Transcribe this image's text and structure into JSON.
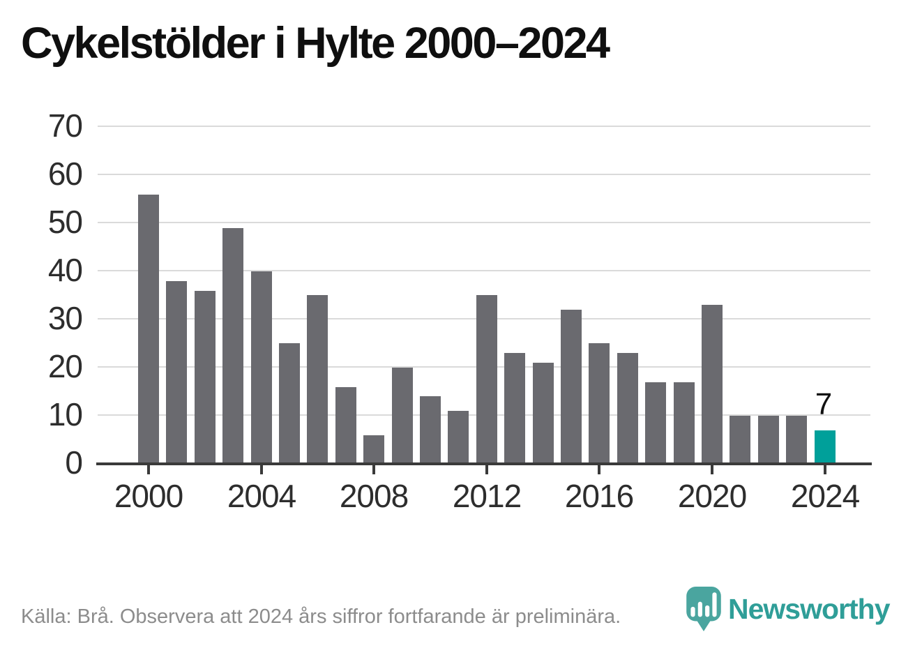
{
  "title": "Cykelstölder i Hylte 2000–2024",
  "chart_data": {
    "type": "bar",
    "title": "Cykelstölder i Hylte 2000–2024",
    "categories": [
      2000,
      2001,
      2002,
      2003,
      2004,
      2005,
      2006,
      2007,
      2008,
      2009,
      2010,
      2011,
      2012,
      2013,
      2014,
      2015,
      2016,
      2017,
      2018,
      2019,
      2020,
      2021,
      2022,
      2023,
      2024
    ],
    "values": [
      56,
      38,
      36,
      49,
      40,
      25,
      35,
      16,
      6,
      20,
      14,
      11,
      35,
      23,
      21,
      32,
      25,
      23,
      17,
      17,
      33,
      10,
      10,
      10,
      7
    ],
    "xlabel": "",
    "ylabel": "",
    "ylim": [
      0,
      70
    ],
    "yticks": [
      0,
      10,
      20,
      30,
      40,
      50,
      60,
      70
    ],
    "xticks": [
      2000,
      2004,
      2008,
      2012,
      2016,
      2020,
      2024
    ],
    "grid": true,
    "legend": false,
    "bar_color": "#6a6a6f",
    "highlight": {
      "year": 2024,
      "color": "#00a09a",
      "label": "7"
    }
  },
  "footer": {
    "source_text": "Källa: Brå. Observera att 2024 års siffror fortfarande är preliminära."
  },
  "branding": {
    "name": "Newsworthy",
    "color": "#2f9e98",
    "pin_color": "#4aa59f"
  }
}
